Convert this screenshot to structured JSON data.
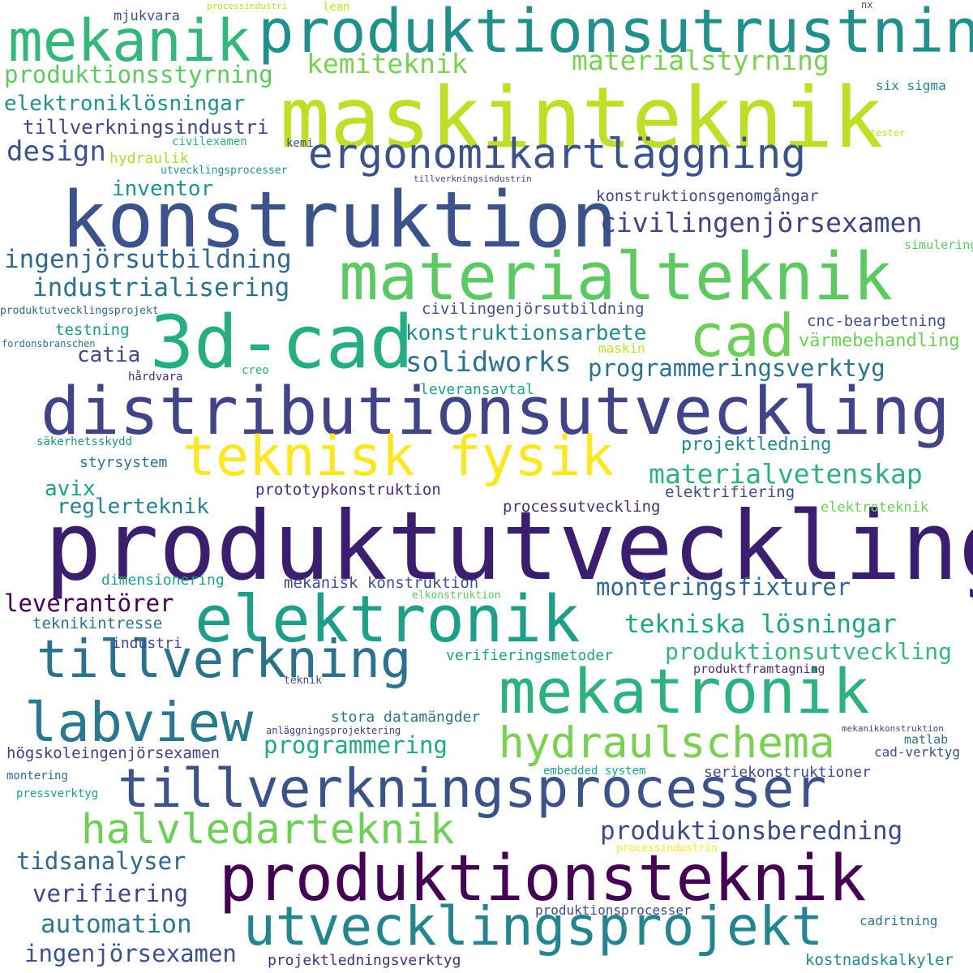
{
  "words": [
    {
      "text": "produktutveckling",
      "color": "#3b1f6e"
    },
    {
      "text": "maskinteknik",
      "color": "#bcdf27"
    },
    {
      "text": "konstruktion",
      "color": "#3b528b"
    },
    {
      "text": "produktionsutrustning",
      "color": "#21908d"
    },
    {
      "text": "mekanik",
      "color": "#35b779"
    },
    {
      "text": "distributionsutveckling",
      "color": "#414487"
    },
    {
      "text": "materialteknik",
      "color": "#5ec962"
    },
    {
      "text": "3d-cad",
      "color": "#27ad81"
    },
    {
      "text": "cad",
      "color": "#6ece58"
    },
    {
      "text": "teknisk fysik",
      "color": "#fde725"
    },
    {
      "text": "elektronik",
      "color": "#1f9e89"
    },
    {
      "text": "mekatronik",
      "color": "#2db27d"
    },
    {
      "text": "tillverkning",
      "color": "#2c728e"
    },
    {
      "text": "tillverkningsprocesser",
      "color": "#3b528b"
    },
    {
      "text": "produktionsteknik",
      "color": "#440154"
    },
    {
      "text": "utvecklingsprojekt",
      "color": "#25858e"
    },
    {
      "text": "ergonomikartläggning",
      "color": "#3b528b"
    },
    {
      "text": "labview",
      "color": "#2a788e"
    },
    {
      "text": "hydraulschema",
      "color": "#7ad151"
    },
    {
      "text": "halvledarteknik",
      "color": "#6ece58"
    },
    {
      "text": "civilingenjörsexamen",
      "color": "#414487"
    },
    {
      "text": "materialstyrning",
      "color": "#7ad151"
    },
    {
      "text": "kemiteknik",
      "color": "#7ad151"
    },
    {
      "text": "produktionsstyrning",
      "color": "#5ec962"
    },
    {
      "text": "elektroniklösningar",
      "color": "#21918c"
    },
    {
      "text": "tillverkningsindustri",
      "color": "#3e4989"
    },
    {
      "text": "design",
      "color": "#3b528b"
    },
    {
      "text": "ingenjörsutbildning",
      "color": "#31688e"
    },
    {
      "text": "industrialisering",
      "color": "#2c728e"
    },
    {
      "text": "solidworks",
      "color": "#2c728e"
    },
    {
      "text": "konstruktionsarbete",
      "color": "#228c8d"
    },
    {
      "text": "programmeringsverktyg",
      "color": "#2c728e"
    },
    {
      "text": "materialvetenskap",
      "color": "#2db27d"
    },
    {
      "text": "monteringsfixturer",
      "color": "#31688e"
    },
    {
      "text": "tekniska lösningar",
      "color": "#20a486"
    },
    {
      "text": "produktionsutveckling",
      "color": "#35b779"
    },
    {
      "text": "produktionsberedning",
      "color": "#3e4989"
    },
    {
      "text": "programmering",
      "color": "#22a884"
    },
    {
      "text": "leverantörer",
      "color": "#440154"
    },
    {
      "text": "tidsanalyser",
      "color": "#31688e"
    },
    {
      "text": "verifiering",
      "color": "#3e4989"
    },
    {
      "text": "automation",
      "color": "#2a788e"
    },
    {
      "text": "ingenjörsexamen",
      "color": "#3b528b"
    },
    {
      "text": "inventor",
      "color": "#21918c"
    },
    {
      "text": "catia",
      "color": "#3e4989"
    },
    {
      "text": "avix",
      "color": "#1f9e89"
    },
    {
      "text": "reglerteknik",
      "color": "#26828e"
    },
    {
      "text": "projektledning",
      "color": "#23898e"
    },
    {
      "text": "konstruktionsgenomgångar",
      "color": "#3e4989"
    },
    {
      "text": "civilingenjörsutbildning",
      "color": "#3b528b"
    },
    {
      "text": "cnc-bearbetning",
      "color": "#3b528b"
    },
    {
      "text": "värmebehandling",
      "color": "#6ece58"
    },
    {
      "text": "prototypkonstruktion",
      "color": "#472d7b"
    },
    {
      "text": "processutveckling",
      "color": "#472d7b"
    },
    {
      "text": "elektrifiering",
      "color": "#3e4989"
    },
    {
      "text": "mekanisk konstruktion",
      "color": "#3b528b"
    },
    {
      "text": "dimensionering",
      "color": "#1fa088"
    },
    {
      "text": "testning",
      "color": "#1f968b"
    },
    {
      "text": "styrsystem",
      "color": "#2c728e"
    },
    {
      "text": "leveransavtal",
      "color": "#1f9e89"
    },
    {
      "text": "maskin",
      "color": "#c2df23"
    },
    {
      "text": "elektroteknik",
      "color": "#6ece58"
    },
    {
      "text": "teknikintresse",
      "color": "#2c728e"
    },
    {
      "text": "industri",
      "color": "#3e4989"
    },
    {
      "text": "verifieringsmetoder",
      "color": "#1fa088"
    },
    {
      "text": "stora datamängder",
      "color": "#2c728e"
    },
    {
      "text": "högskoleingenjörsexamen",
      "color": "#433e85"
    },
    {
      "text": "seriekonstruktioner",
      "color": "#3e4989"
    },
    {
      "text": "cad-verktyg",
      "color": "#3b528b"
    },
    {
      "text": "matlab",
      "color": "#2c728e"
    },
    {
      "text": "cadritning",
      "color": "#2c728e"
    },
    {
      "text": "projektledningsverktyg",
      "color": "#472d7b"
    },
    {
      "text": "kostnadskalkyler",
      "color": "#25858e"
    },
    {
      "text": "produktionsprocesser",
      "color": "#3e4989"
    },
    {
      "text": "produktframtagning",
      "color": "#472d7b"
    },
    {
      "text": "mjukvara",
      "color": "#3b528b"
    },
    {
      "text": "processindustri",
      "color": "#b5de2b"
    },
    {
      "text": "lean",
      "color": "#c8e020"
    },
    {
      "text": "nx",
      "color": "#3b528b"
    },
    {
      "text": "six sigma",
      "color": "#25858e"
    },
    {
      "text": "tester",
      "color": "#bddf26"
    },
    {
      "text": "hydraulik",
      "color": "#aadc32"
    },
    {
      "text": "civilexamen",
      "color": "#2db27d"
    },
    {
      "text": "kemi",
      "color": "#3b528b"
    },
    {
      "text": "utvecklingsprocesser",
      "color": "#21918c"
    },
    {
      "text": "tillverkningsindustrin",
      "color": "#3e4989"
    },
    {
      "text": "simulering",
      "color": "#5ec962"
    },
    {
      "text": "produktutvecklingsprojekt",
      "color": "#31688e"
    },
    {
      "text": "fordonsbranschen",
      "color": "#2c728e"
    },
    {
      "text": "hårdvara",
      "color": "#472d7b"
    },
    {
      "text": "creo",
      "color": "#27ad81"
    },
    {
      "text": "säkerhetsskydd",
      "color": "#21918c"
    },
    {
      "text": "elkonstruktion",
      "color": "#5ec962"
    },
    {
      "text": "teknik",
      "color": "#3e4989"
    },
    {
      "text": "anläggningsprojektering",
      "color": "#433e85"
    },
    {
      "text": "mekanikkonstruktion",
      "color": "#3e4989"
    },
    {
      "text": "embedded system",
      "color": "#1fa088"
    },
    {
      "text": "montering",
      "color": "#31688e"
    },
    {
      "text": "pressverktyg",
      "color": "#1fa088"
    },
    {
      "text": "processindustrin",
      "color": "#fde725"
    }
  ]
}
